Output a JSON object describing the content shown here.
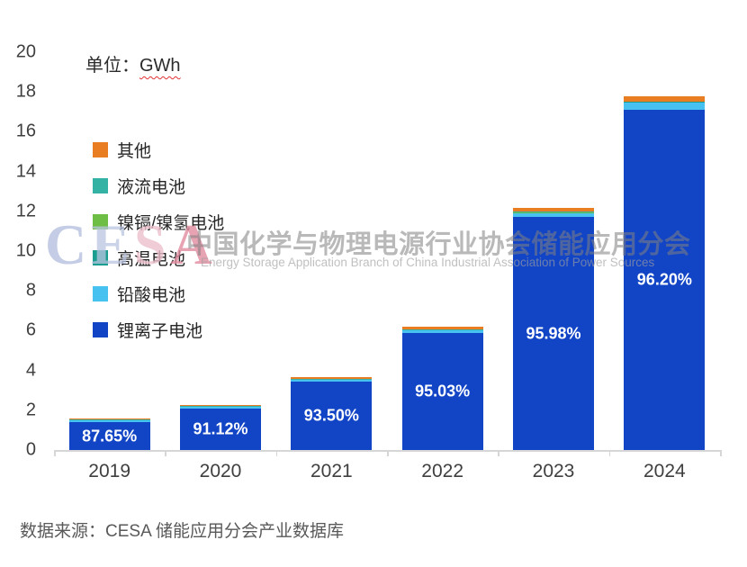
{
  "title": {
    "prefix": "单位：",
    "unit": "GWh"
  },
  "chart_data": {
    "type": "bar",
    "subtype": "stacked",
    "title": "单位：GWh",
    "unit": "GWh",
    "categories": [
      "2019",
      "2020",
      "2021",
      "2022",
      "2023",
      "2024"
    ],
    "series": [
      {
        "name": "锂离子电池",
        "color": "#1245C6",
        "values": [
          1.4,
          2.07,
          3.43,
          5.89,
          11.7,
          17.1
        ]
      },
      {
        "name": "铅酸电池",
        "color": "#47C2F0",
        "values": [
          0.085,
          0.085,
          0.09,
          0.115,
          0.21,
          0.38
        ]
      },
      {
        "name": "高温电池",
        "color": "#1B9E8F",
        "values": [
          0.015,
          0.012,
          0.012,
          0.012,
          0.012,
          0.012
        ]
      },
      {
        "name": "镍镉/镍氢电池",
        "color": "#6EBE45",
        "values": [
          0.003,
          0.003,
          0.003,
          0.003,
          0.003,
          0.003
        ]
      },
      {
        "name": "液流电池",
        "color": "#34B3A4",
        "values": [
          0.022,
          0.03,
          0.05,
          0.06,
          0.065,
          0.03
        ]
      },
      {
        "name": "其他",
        "color": "#E87D22",
        "values": [
          0.072,
          0.07,
          0.083,
          0.118,
          0.2,
          0.25
        ]
      }
    ],
    "totals_gwh": [
      1.6,
      2.27,
      3.67,
      6.2,
      12.19,
      17.78
    ],
    "bar_labels": [
      "87.65%",
      "91.12%",
      "93.50%",
      "95.03%",
      "95.98%",
      "96.20%"
    ],
    "bar_label_meaning": "锂离子电池占比",
    "y_axis": {
      "min": 0,
      "max": 20,
      "step": 2
    },
    "grid": false,
    "legend_position": "left-middle",
    "legend_order_top_to_bottom": [
      "其他",
      "液流电池",
      "镍镉/镍氢电池",
      "高温电池",
      "铅酸电池",
      "锂离子电池"
    ]
  },
  "watermark": {
    "logo_letters": [
      {
        "ch": "C",
        "color": "rgba(176,188,220,0.75)"
      },
      {
        "ch": "E",
        "color": "rgba(186,196,224,0.75)"
      },
      {
        "ch": "S",
        "color": "rgba(236,192,204,0.8)"
      },
      {
        "ch": "A",
        "color": "rgba(226,140,160,0.8)"
      }
    ],
    "line1": "中国化学与物理电源行业协会储能应用分会",
    "line2": "Energy Storage Application Branch of China Industrial Association of Power Sources"
  },
  "footer": {
    "source": "数据来源：CESA 储能应用分会产业数据库"
  }
}
